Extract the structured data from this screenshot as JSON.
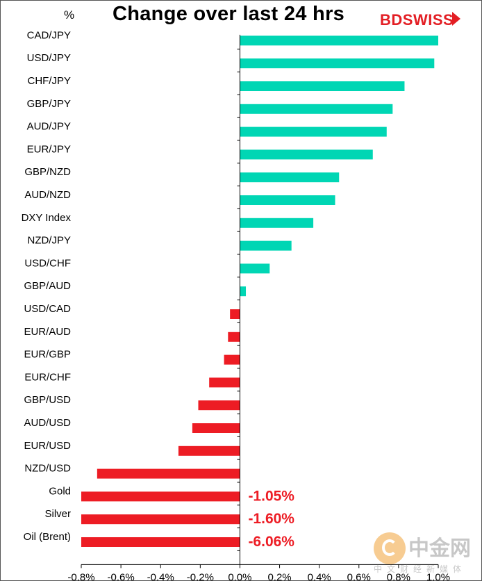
{
  "chart_data": {
    "type": "bar",
    "orientation": "horizontal",
    "title": "Change over last 24 hrs",
    "unit_label": "%",
    "categories": [
      "CAD/JPY",
      "USD/JPY",
      "CHF/JPY",
      "GBP/JPY",
      "AUD/JPY",
      "EUR/JPY",
      "GBP/NZD",
      "AUD/NZD",
      "DXY Index",
      "NZD/JPY",
      "USD/CHF",
      "GBP/AUD",
      "USD/CAD",
      "EUR/AUD",
      "EUR/GBP",
      "EUR/CHF",
      "GBP/USD",
      "AUD/USD",
      "EUR/USD",
      "NZD/USD",
      "Gold",
      "Silver",
      "Oil (Brent)"
    ],
    "values": [
      1.04,
      0.98,
      0.83,
      0.77,
      0.74,
      0.67,
      0.5,
      0.48,
      0.37,
      0.26,
      0.15,
      0.03,
      -0.05,
      -0.06,
      -0.08,
      -0.155,
      -0.21,
      -0.24,
      -0.31,
      -0.72,
      -1.05,
      -1.6,
      -6.06
    ],
    "data_labels": [
      "",
      "",
      "",
      "",
      "",
      "",
      "",
      "",
      "",
      "",
      "",
      "",
      "",
      "",
      "",
      "",
      "",
      "",
      "",
      "",
      "-1.05%",
      "-1.60%",
      "-6.06%"
    ],
    "xlim": [
      -0.8,
      1.0
    ],
    "x_ticks": [
      "-0.8%",
      "-0.6%",
      "-0.4%",
      "-0.2%",
      "0.0%",
      "0.2%",
      "0.4%",
      "0.6%",
      "0.8%",
      "1.0%"
    ],
    "x_tick_values": [
      -0.8,
      -0.6,
      -0.4,
      -0.2,
      0.0,
      0.2,
      0.4,
      0.6,
      0.8,
      1.0
    ],
    "grid": false,
    "colors": {
      "positive": "#00d6b4",
      "negative": "#ed1c24",
      "data_label": "#ed1c24",
      "axis": "#000000"
    }
  },
  "branding": {
    "logo_text": "BDSWISS",
    "logo_color": "#e31e24",
    "watermark_text": "中金网",
    "watermark_sub": "中文财经新媒体"
  }
}
